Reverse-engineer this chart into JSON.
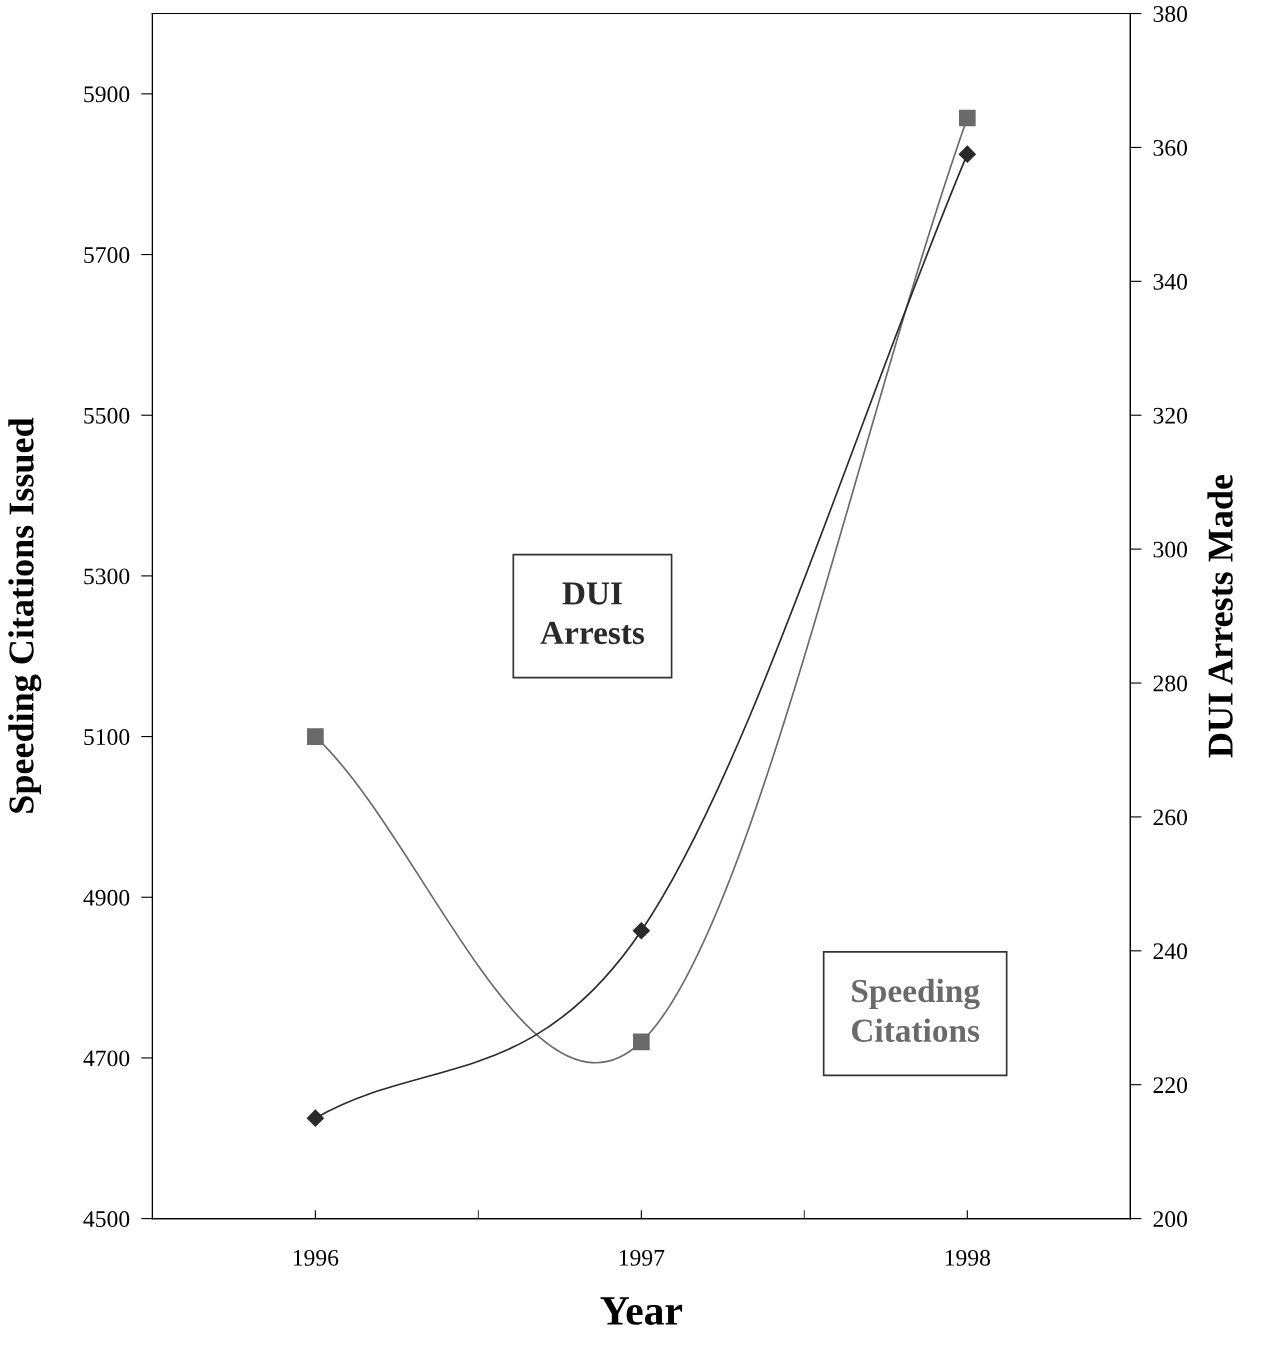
{
  "chart_data": {
    "type": "line",
    "xlabel": "Year",
    "ylabel": "Speeding Citations Issued",
    "y2label": "DUI Arrests Made",
    "categories": [
      "1996",
      "1997",
      "1998"
    ],
    "series": [
      {
        "name": "Speeding Citations",
        "color": "#6a6a6a",
        "marker": "square",
        "values": [
          5100,
          4720,
          5870
        ]
      },
      {
        "name": "DUI Arrests",
        "color": "#2a2a2a",
        "marker": "diamond",
        "axis": "y2",
        "values": [
          215,
          243,
          359
        ]
      }
    ],
    "ylim": [
      4500,
      6000
    ],
    "yticks": [
      4500,
      4700,
      4900,
      5100,
      5300,
      5500,
      5700,
      5900
    ],
    "y2lim": [
      200,
      380
    ],
    "y2ticks": [
      200,
      220,
      240,
      260,
      280,
      300,
      320,
      340,
      360,
      380
    ],
    "grid": false,
    "legend": false,
    "line_style": "solid"
  }
}
